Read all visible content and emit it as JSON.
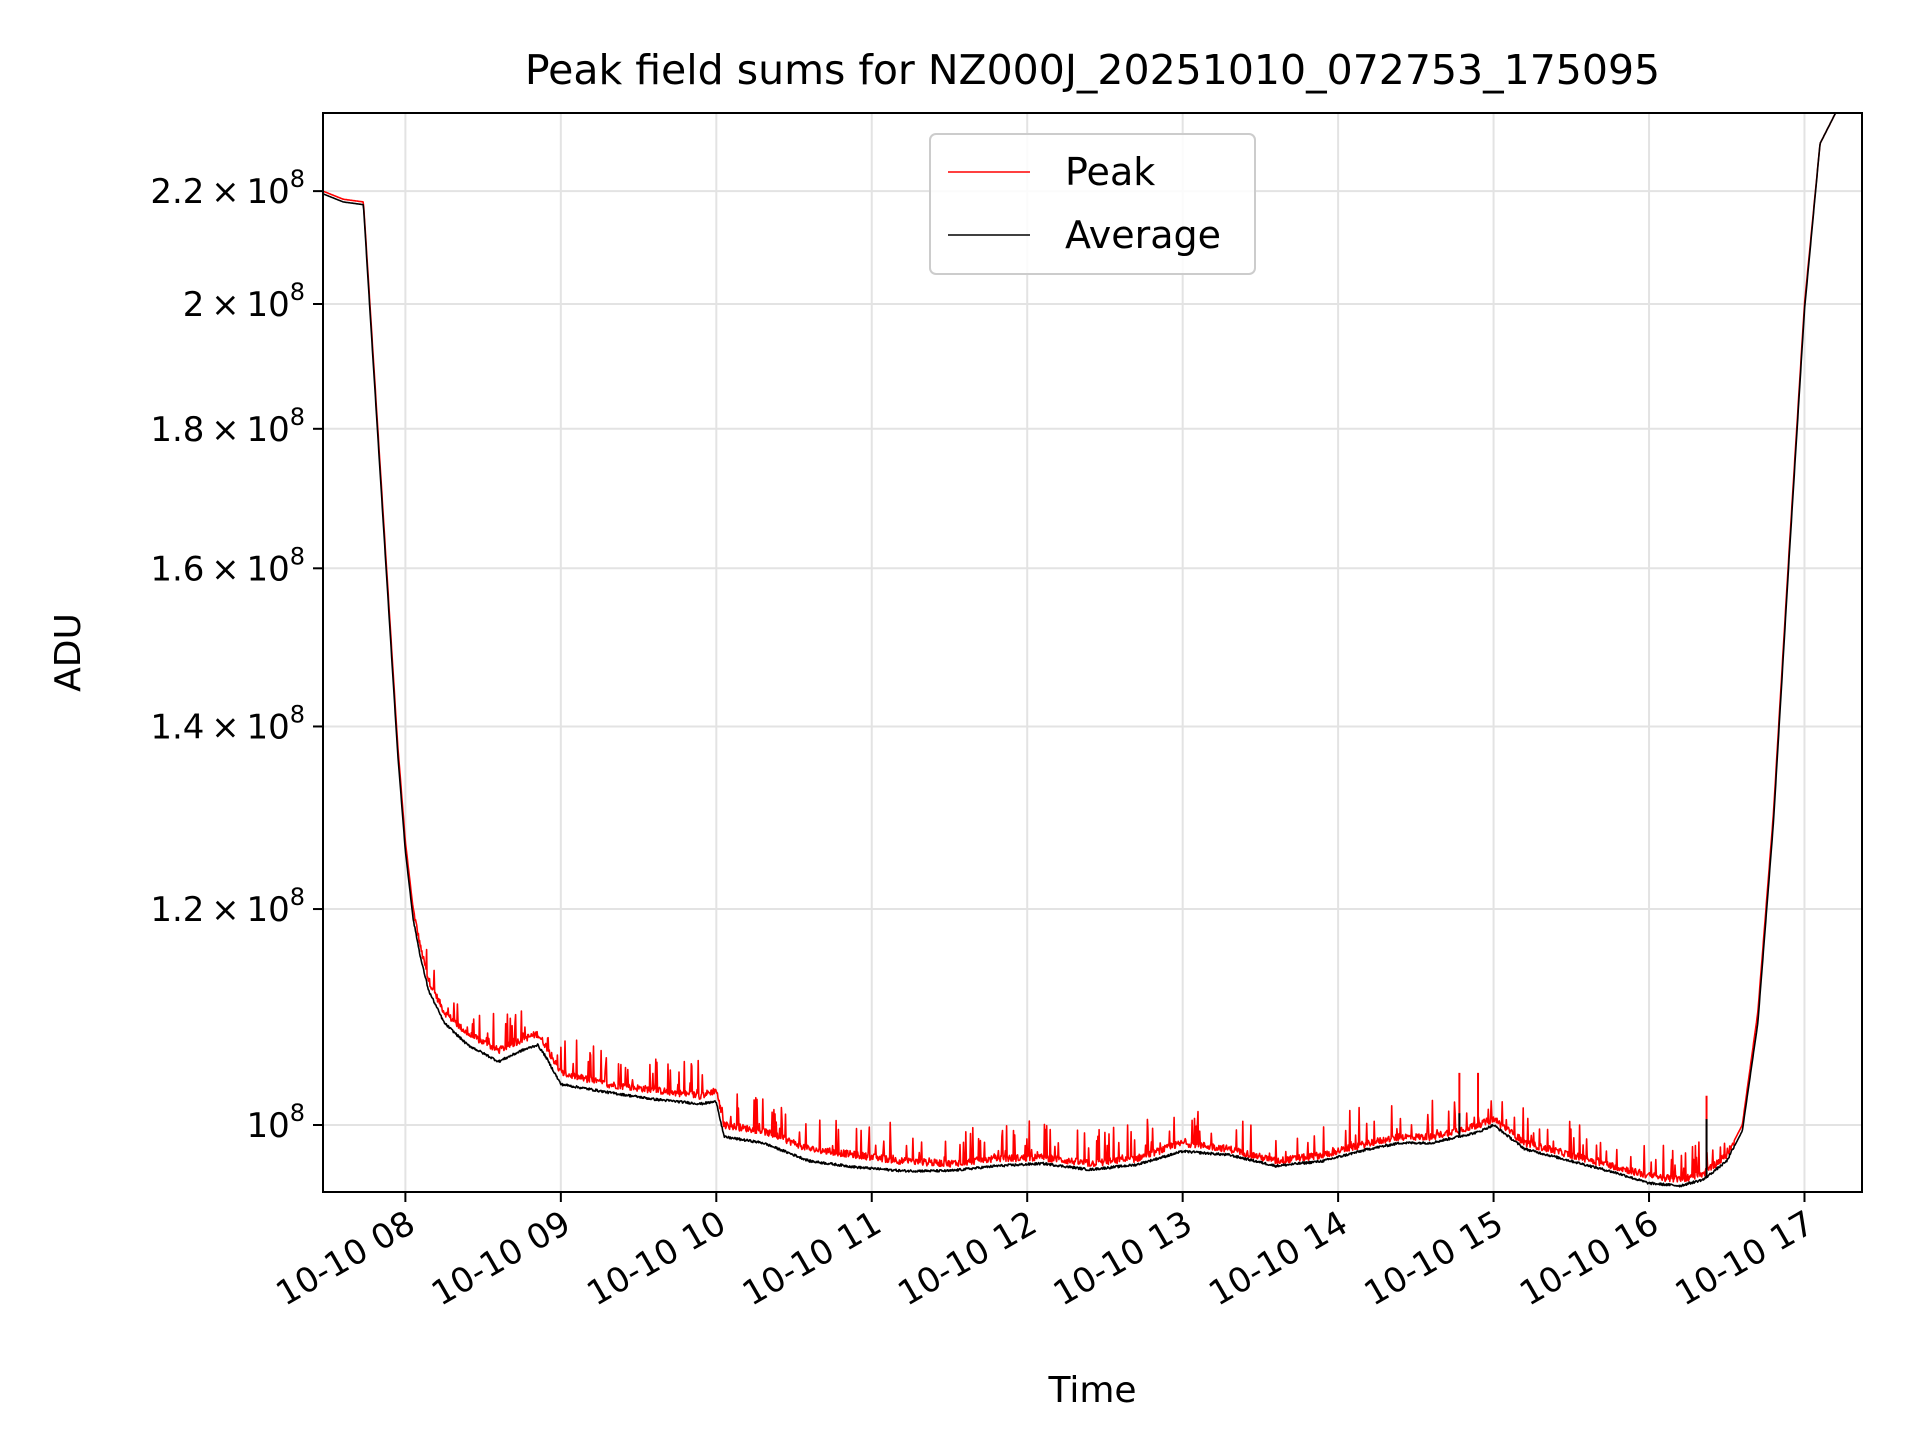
{
  "chart_data": {
    "type": "line",
    "title": "Peak field sums for NZ000J_20251010_072753_175095",
    "xlabel": "Time",
    "ylabel": "ADU",
    "yscale": "log",
    "grid": true,
    "legend_position": "upper-center",
    "xlim": [
      7.47,
      17.37
    ],
    "ylim": [
      94500000.0,
      235000000.0
    ],
    "x_ticks": [
      {
        "value": 8,
        "label": "10-10 08"
      },
      {
        "value": 9,
        "label": "10-10 09"
      },
      {
        "value": 10,
        "label": "10-10 10"
      },
      {
        "value": 11,
        "label": "10-10 11"
      },
      {
        "value": 12,
        "label": "10-10 12"
      },
      {
        "value": 13,
        "label": "10-10 13"
      },
      {
        "value": 14,
        "label": "10-10 14"
      },
      {
        "value": 15,
        "label": "10-10 15"
      },
      {
        "value": 16,
        "label": "10-10 16"
      },
      {
        "value": 17,
        "label": "10-10 17"
      }
    ],
    "y_ticks": [
      {
        "value": 100000000.0,
        "mantissa": "",
        "exponent": "8"
      },
      {
        "value": 120000000.0,
        "mantissa": "1.2",
        "exponent": "8"
      },
      {
        "value": 140000000.0,
        "mantissa": "1.4",
        "exponent": "8"
      },
      {
        "value": 160000000.0,
        "mantissa": "1.6",
        "exponent": "8"
      },
      {
        "value": 180000000.0,
        "mantissa": "1.8",
        "exponent": "8"
      },
      {
        "value": 200000000.0,
        "mantissa": "2",
        "exponent": "8"
      },
      {
        "value": 220000000.0,
        "mantissa": "2.2",
        "exponent": "8"
      }
    ],
    "y_tick_base": "10",
    "times_symbol": "×",
    "series": [
      {
        "name": "Peak",
        "color": "#ff0000",
        "x": [
          7.47,
          7.6,
          7.73,
          7.76,
          7.85,
          7.95,
          8.0,
          8.05,
          8.1,
          8.15,
          8.25,
          8.4,
          8.6,
          8.75,
          8.85,
          8.9,
          9.0,
          9.3,
          9.6,
          9.9,
          10.0,
          10.05,
          10.3,
          10.6,
          10.9,
          11.2,
          11.5,
          11.8,
          12.1,
          12.4,
          12.7,
          13.0,
          13.3,
          13.6,
          13.9,
          14.2,
          14.4,
          14.6,
          14.9,
          15.0,
          15.2,
          15.5,
          15.8,
          16.0,
          16.2,
          16.35,
          16.5,
          16.6,
          16.7,
          16.8,
          16.9,
          17.0,
          17.1,
          17.2
        ],
        "y": [
          220000000.0,
          218500000.0,
          218000000.0,
          205000000.0,
          170000000.0,
          138000000.0,
          127000000.0,
          120000000.0,
          116000000.0,
          113000000.0,
          110000000.0,
          108000000.0,
          106500000.0,
          107500000.0,
          108000000.0,
          107000000.0,
          104500000.0,
          103500000.0,
          103000000.0,
          102500000.0,
          103000000.0,
          100000000.0,
          99500000.0,
          98000000.0,
          97500000.0,
          97000000.0,
          96800000.0,
          97200000.0,
          97300000.0,
          96800000.0,
          97200000.0,
          98500000.0,
          98000000.0,
          97000000.0,
          97500000.0,
          98500000.0,
          99000000.0,
          99000000.0,
          100000000.0,
          100500000.0,
          98500000.0,
          97500000.0,
          96500000.0,
          95800000.0,
          95500000.0,
          96000000.0,
          97500000.0,
          100000000.0,
          110000000.0,
          130000000.0,
          162000000.0,
          200000000.0,
          229000000.0,
          235000000.0
        ]
      },
      {
        "name": "Average",
        "color": "#000000",
        "x": [
          7.47,
          7.6,
          7.73,
          7.76,
          7.85,
          7.95,
          8.0,
          8.05,
          8.1,
          8.15,
          8.25,
          8.4,
          8.6,
          8.75,
          8.85,
          8.9,
          9.0,
          9.3,
          9.6,
          9.9,
          10.0,
          10.05,
          10.3,
          10.6,
          10.9,
          11.2,
          11.5,
          11.8,
          12.1,
          12.4,
          12.7,
          13.0,
          13.3,
          13.6,
          13.9,
          14.2,
          14.4,
          14.6,
          14.9,
          15.0,
          15.2,
          15.5,
          15.8,
          16.0,
          16.2,
          16.35,
          16.5,
          16.6,
          16.7,
          16.8,
          16.9,
          17.0,
          17.1,
          17.2
        ],
        "y": [
          219500000.0,
          218000000.0,
          217500000.0,
          204000000.0,
          169000000.0,
          137000000.0,
          126000000.0,
          119000000.0,
          115000000.0,
          112000000.0,
          109000000.0,
          107000000.0,
          105500000.0,
          106500000.0,
          107000000.0,
          106000000.0,
          103500000.0,
          102800000.0,
          102200000.0,
          101800000.0,
          102000000.0,
          99000000.0,
          98500000.0,
          97000000.0,
          96500000.0,
          96200000.0,
          96200000.0,
          96600000.0,
          96800000.0,
          96300000.0,
          96700000.0,
          97800000.0,
          97500000.0,
          96600000.0,
          97000000.0,
          98000000.0,
          98500000.0,
          98500000.0,
          99400000.0,
          100000000.0,
          98000000.0,
          97000000.0,
          96000000.0,
          95200000.0,
          95000000.0,
          95500000.0,
          97000000.0,
          99500000.0,
          109000000.0,
          129000000.0,
          161000000.0,
          199000000.0,
          229000000.0,
          235000000.0
        ]
      }
    ],
    "annotated_spikes": [
      {
        "series": "Peak",
        "x": 14.78,
        "y": 104500000.0
      },
      {
        "series": "Peak",
        "x": 14.9,
        "y": 104500000.0
      },
      {
        "series": "Average",
        "x": 14.78,
        "y": 101000000.0
      },
      {
        "series": "Peak",
        "x": 16.37,
        "y": 102500000.0
      },
      {
        "series": "Average",
        "x": 16.37,
        "y": 100500000.0
      }
    ]
  }
}
